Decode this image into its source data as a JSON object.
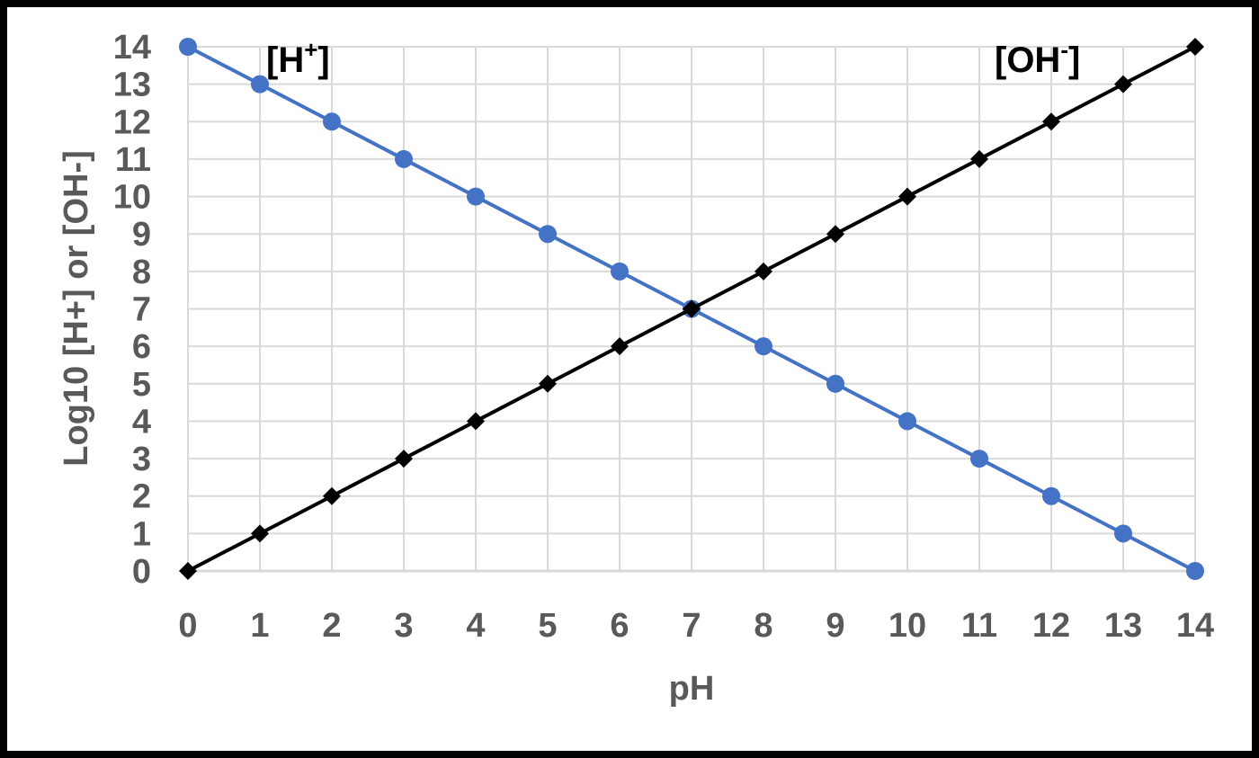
{
  "chart_data": {
    "type": "line",
    "title": "",
    "xlabel": "pH",
    "ylabel": "Log10 [H+] or [OH-]",
    "x": [
      0,
      1,
      2,
      3,
      4,
      5,
      6,
      7,
      8,
      9,
      10,
      11,
      12,
      13,
      14
    ],
    "xlim": [
      0,
      14
    ],
    "ylim": [
      0,
      14
    ],
    "xticks": [
      "0",
      "1",
      "2",
      "3",
      "4",
      "5",
      "6",
      "7",
      "8",
      "9",
      "10",
      "11",
      "12",
      "13",
      "14"
    ],
    "yticks": [
      "0",
      "1",
      "2",
      "3",
      "4",
      "5",
      "6",
      "7",
      "8",
      "9",
      "10",
      "11",
      "12",
      "13",
      "14"
    ],
    "grid": true,
    "series": [
      {
        "values": [
          14,
          13,
          12,
          11,
          10,
          9,
          8,
          7,
          6,
          5,
          4,
          3,
          2,
          1,
          0
        ],
        "color": "#4472C4",
        "marker": "circle"
      },
      {
        "values": [
          0,
          1,
          2,
          3,
          4,
          5,
          6,
          7,
          8,
          9,
          10,
          11,
          12,
          13,
          14
        ],
        "color": "#000000",
        "marker": "diamond"
      }
    ],
    "annotations": [
      {
        "base": "[H",
        "sup": "+",
        "close": "]"
      },
      {
        "base": "[OH",
        "sup": "-",
        "close": "]"
      }
    ]
  },
  "colors": {
    "grid": "#D9D9D9",
    "axis": "#D9D9D9",
    "tick_text": "#595959",
    "frame": "#000000"
  }
}
